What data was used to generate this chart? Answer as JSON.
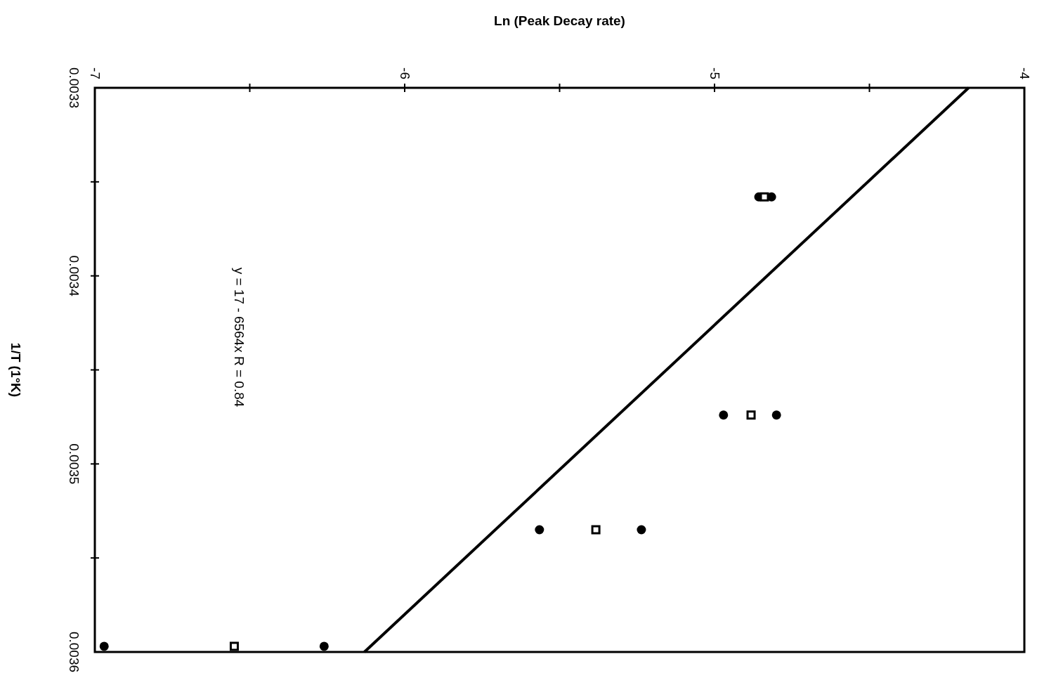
{
  "chart_data": {
    "type": "scatter",
    "xlabel": "Ln (Peak Decay rate)",
    "ylabel": "1/T (1°K)",
    "xlim": [
      -7,
      -4
    ],
    "xticks": [
      -7,
      {
        "value": -6.5,
        "label": null
      },
      -6,
      {
        "value": -5.5,
        "label": null
      },
      -5,
      {
        "value": -4.5,
        "label": null
      },
      -4
    ],
    "ylim": [
      0.0036,
      0.0033
    ],
    "yticks": [
      0.0033,
      {
        "value": 0.00335,
        "label": null
      },
      0.0034,
      {
        "value": 0.00345,
        "label": null
      },
      0.0035,
      {
        "value": 0.00355,
        "label": null
      },
      0.0036
    ],
    "marker": "circle",
    "grid": false,
    "annotations": [
      "y = 17 - 6564x   R = 0.84"
    ],
    "series": [
      {
        "color": "#000000",
        "x": [
          -4.857,
          -4.816,
          -4.971,
          -4.8,
          -5.565,
          -5.236,
          -6.97,
          -6.26
        ],
        "values": [
          0.003358,
          0.003358,
          0.003474,
          0.003474,
          0.003535,
          0.003535,
          0.003597,
          0.003597
        ]
      },
      {
        "marker": "square",
        "color": "#000000",
        "x": [
          -4.839,
          -4.882,
          -5.383,
          -6.55
        ],
        "values": [
          0.003358,
          0.003474,
          0.003535,
          0.003597
        ]
      },
      {
        "type": "line",
        "marker": "none",
        "color": "#000000",
        "x": [
          -4.18,
          -6.13
        ],
        "values": [
          0.0033,
          0.0036
        ]
      }
    ]
  }
}
